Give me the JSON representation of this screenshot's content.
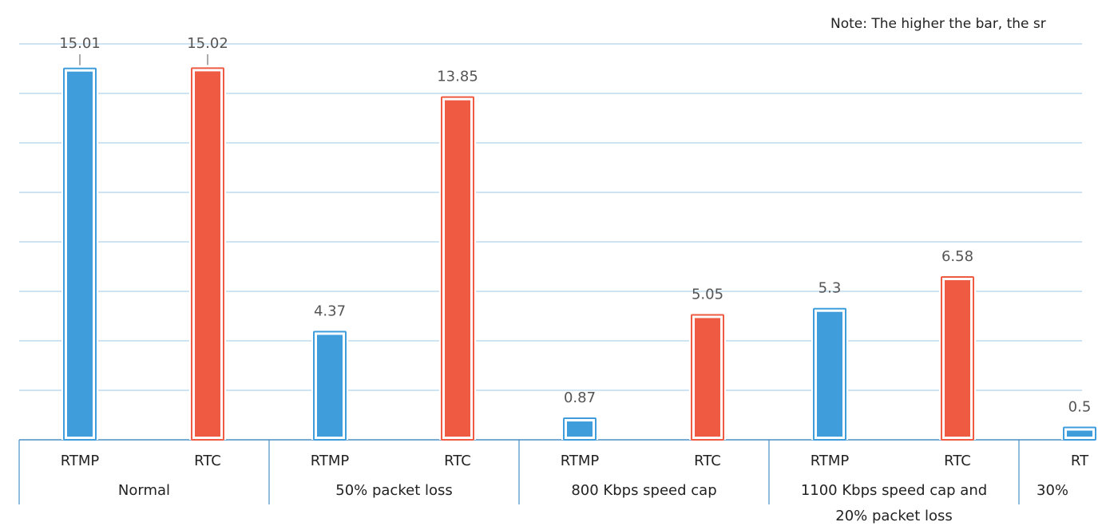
{
  "note": "Note: The higher the bar, the sr",
  "colors": {
    "rtmp": "#3f9ddc",
    "rtc": "#ee5a42",
    "grid": "#9cc8e6",
    "axis": "#4a8fc4",
    "label": "#555555",
    "text": "#222222"
  },
  "chart_data": {
    "type": "bar",
    "title": "",
    "xlabel": "",
    "ylabel": "",
    "ylim": [
      0,
      16
    ],
    "grid": true,
    "groups": [
      {
        "label": "Normal",
        "bars": [
          {
            "label": "RTMP",
            "value": 15.01,
            "value_label": "15.01"
          },
          {
            "label": "RTC",
            "value": 15.02,
            "value_label": "15.02"
          }
        ]
      },
      {
        "label": "50% packet loss",
        "bars": [
          {
            "label": "RTMP",
            "value": 4.37,
            "value_label": "4.37"
          },
          {
            "label": "RTC",
            "value": 13.85,
            "value_label": "13.85"
          }
        ]
      },
      {
        "label": "800 Kbps speed cap",
        "bars": [
          {
            "label": "RTMP",
            "value": 0.87,
            "value_label": "0.87"
          },
          {
            "label": "RTC",
            "value": 5.05,
            "value_label": "5.05"
          }
        ]
      },
      {
        "label": "1100 Kbps speed cap and 20% packet loss",
        "label_lines": [
          "1100 Kbps speed cap and",
          "20% packet loss"
        ],
        "bars": [
          {
            "label": "RTMP",
            "value": 5.3,
            "value_label": "5.3"
          },
          {
            "label": "RTC",
            "value": 6.58,
            "value_label": "6.58"
          }
        ]
      },
      {
        "label": "30%",
        "bars": [
          {
            "label": "RT",
            "value": 0.5,
            "value_label": "0.5"
          }
        ]
      }
    ]
  }
}
